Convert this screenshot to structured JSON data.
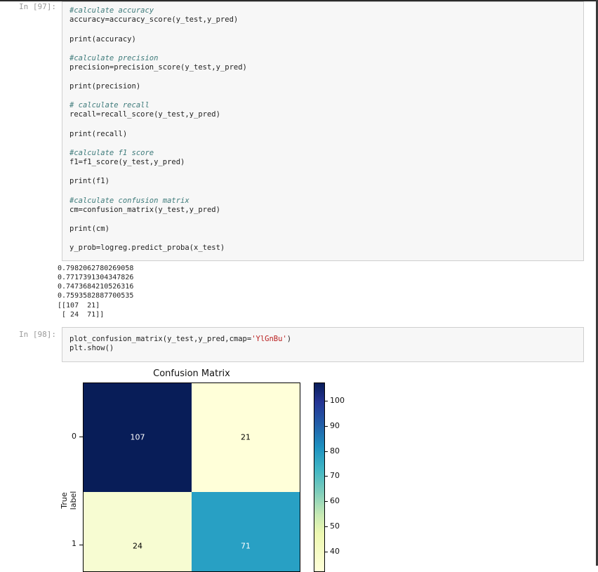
{
  "cell_97": {
    "prompt": "In [97]:",
    "code": [
      {
        "text": "#calculate accuracy",
        "kind": "comment"
      },
      {
        "text": "accuracy=accuracy_score(y_test,y_pred)",
        "kind": "code"
      },
      {
        "text": "print(accuracy)",
        "kind": "code"
      },
      {
        "text": "#calculate precision",
        "kind": "comment"
      },
      {
        "text": "precision=precision_score(y_test,y_pred)",
        "kind": "code"
      },
      {
        "text": "print(precision)",
        "kind": "code"
      },
      {
        "text": "# calculate recall",
        "kind": "comment"
      },
      {
        "text": "recall=recall_score(y_test,y_pred)",
        "kind": "code"
      },
      {
        "text": "print(recall)",
        "kind": "code"
      },
      {
        "text": "#calculate f1 score",
        "kind": "comment"
      },
      {
        "text": "f1=f1_score(y_test,y_pred)",
        "kind": "code"
      },
      {
        "text": "print(f1)",
        "kind": "code"
      },
      {
        "text": "#calculate confusion matrix",
        "kind": "comment"
      },
      {
        "text": "cm=confusion_matrix(y_test,y_pred)",
        "kind": "code"
      },
      {
        "text": "print(cm)",
        "kind": "code"
      },
      {
        "text": "y_prob=logreg.predict_proba(x_test)",
        "kind": "code"
      }
    ],
    "output": [
      "0.7982062780269058",
      "0.7717391304347826",
      "0.7473684210526316",
      "0.7593582887700535",
      "[[107  21]",
      " [ 24  71]]"
    ]
  },
  "cell_98": {
    "prompt": "In [98]:",
    "code": [
      {
        "text": "plot_confusion_matrix(y_test,y_pred,cmap='YlGnBu')",
        "kind": "code"
      },
      {
        "text": "plt.show()",
        "kind": "code"
      }
    ]
  },
  "chart_data": {
    "type": "heatmap",
    "title": "Confusion Matrix",
    "ylabel": "True label",
    "xlabel": "",
    "row_labels": [
      "0",
      "1"
    ],
    "col_labels": [],
    "values": [
      [
        107,
        21
      ],
      [
        24,
        71
      ]
    ],
    "cell_colors": [
      [
        "#081d58",
        "#ffffd9"
      ],
      [
        "#f7fcd2",
        "#28a0c4"
      ]
    ],
    "cell_text_colors": [
      [
        "#ffffff",
        "#000000"
      ],
      [
        "#000000",
        "#ffffff"
      ]
    ],
    "colormap": "YlGnBu",
    "colorbar": {
      "ticks": [
        "100",
        "90",
        "80",
        "70",
        "60",
        "50",
        "40"
      ]
    }
  }
}
